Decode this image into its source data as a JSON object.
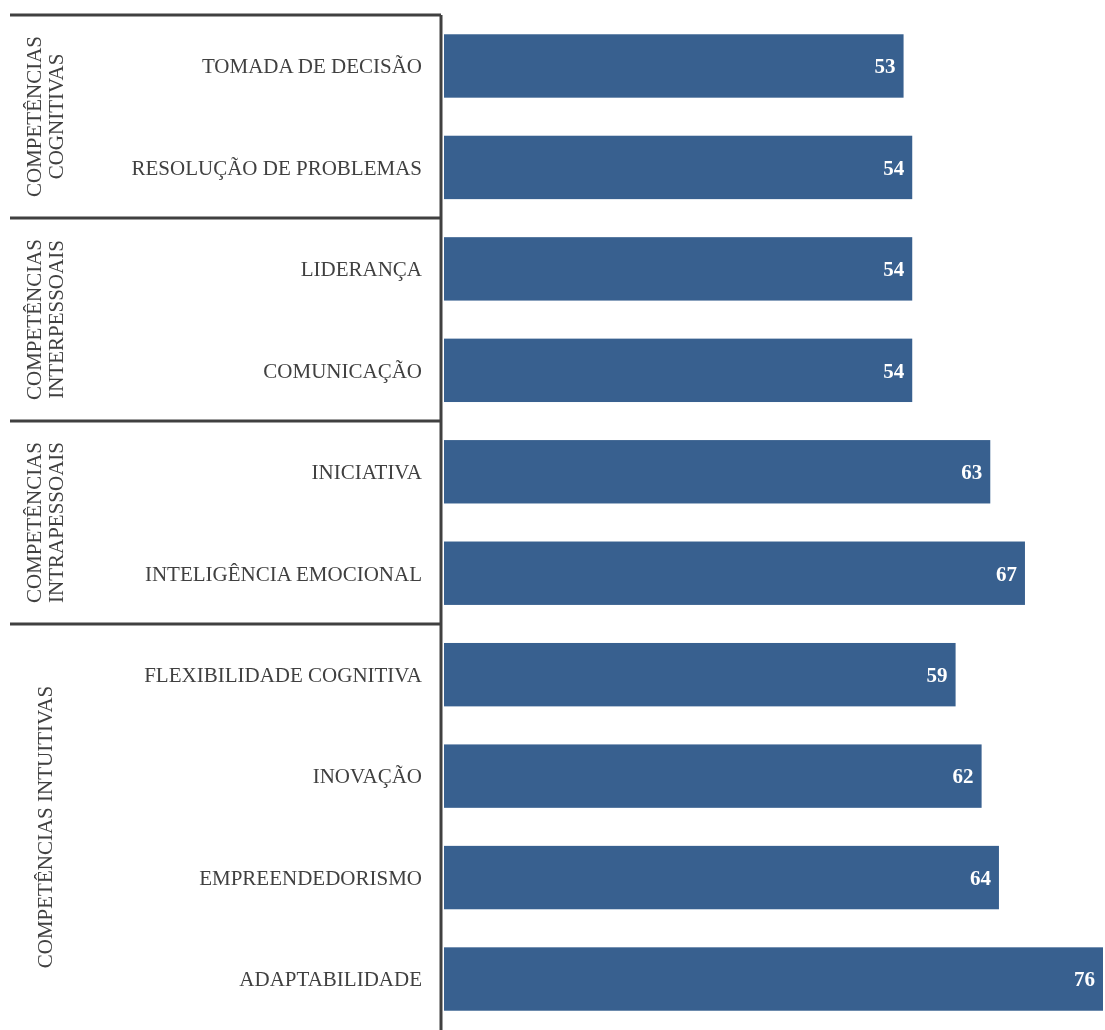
{
  "chart_data": {
    "type": "bar",
    "orientation": "horizontal",
    "categories": [
      "TOMADA DE DECISÃO",
      "RESOLUÇÃO DE PROBLEMAS",
      "LIDERANÇA",
      "COMUNICAÇÃO",
      "INICIATIVA",
      "INTELIGÊNCIA EMOCIONAL",
      "FLEXIBILIDADE COGNITIVA",
      "INOVAÇÃO",
      "EMPREENDEDORISMO",
      "ADAPTABILIDADE"
    ],
    "values": [
      53,
      54,
      54,
      54,
      63,
      67,
      59,
      62,
      64,
      76
    ],
    "color": "#38608f",
    "data_labels": true,
    "annotations": [
      "COMPETÊNCIAS COGNITIVAS",
      "COMPETÊNCIAS INTERPESSOAIS",
      "COMPETÊNCIAS INTRAPESSOAIS",
      "COMPETÊNCIAS INTUITIVAS"
    ]
  }
}
